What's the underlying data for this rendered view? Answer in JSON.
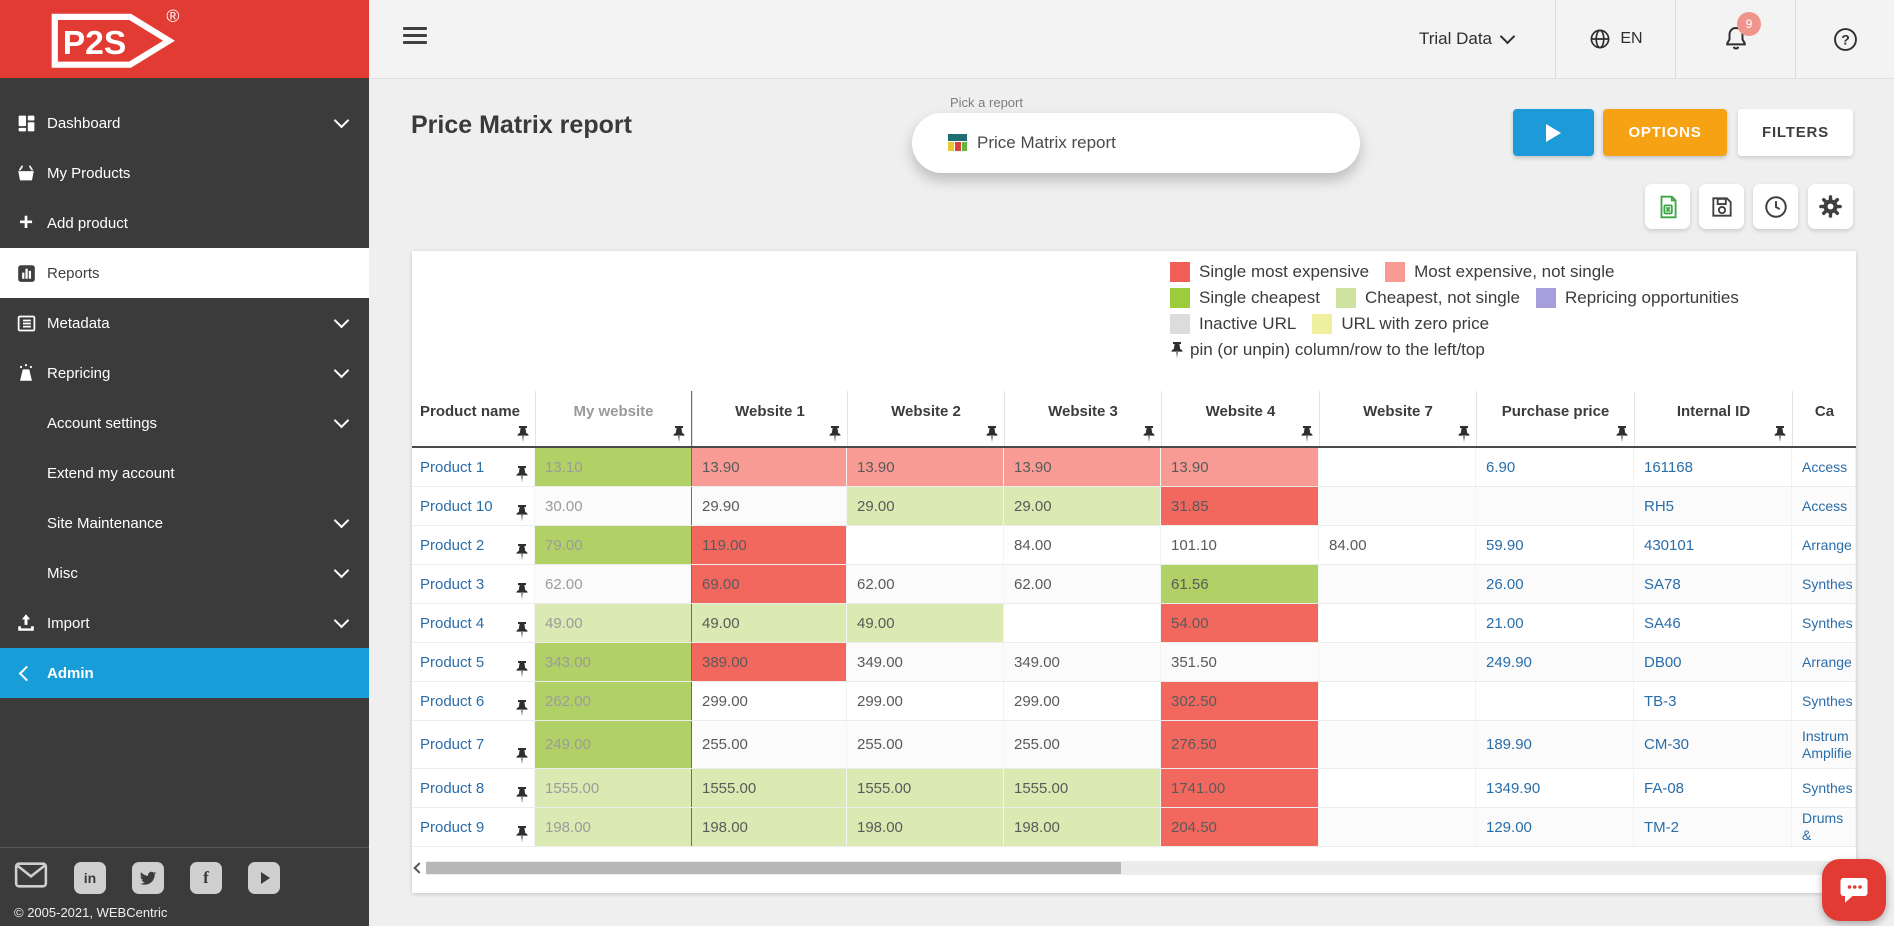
{
  "sidebar": {
    "logo_text": "P2S",
    "logo_reg": "®",
    "items": [
      {
        "label": "Dashboard",
        "icon": "dashboard",
        "chevron": true
      },
      {
        "label": "My Products",
        "icon": "basket"
      },
      {
        "label": "Add product",
        "icon": "plus"
      },
      {
        "label": "Reports",
        "icon": "reports",
        "active": true
      },
      {
        "label": "Metadata",
        "icon": "metadata",
        "chevron": true
      },
      {
        "label": "Repricing",
        "icon": "repricing",
        "chevron": true
      },
      {
        "label": "Account settings",
        "chevron": true
      },
      {
        "label": "Extend my account"
      },
      {
        "label": "Site Maintenance",
        "chevron": true
      },
      {
        "label": "Misc",
        "chevron": true
      },
      {
        "label": "Import",
        "icon": "import",
        "chevron": true
      },
      {
        "label": "Admin",
        "admin": true
      }
    ],
    "social_icons": [
      "email",
      "linkedin",
      "twitter",
      "facebook",
      "youtube"
    ],
    "copyright": "© 2005-2021, WEBCentric"
  },
  "topbar": {
    "account_label": "Trial Data",
    "language": "EN",
    "notifications_count": "9"
  },
  "page": {
    "title": "Price Matrix report"
  },
  "report_picker": {
    "label": "Pick a report",
    "value": "Price Matrix report"
  },
  "toolbar": {
    "options_label": "OPTIONS",
    "filters_label": "FILTERS",
    "icon_buttons": [
      "excel-export",
      "save",
      "history",
      "settings"
    ]
  },
  "legend": {
    "rows": [
      [
        {
          "swatch": "red",
          "label": "Single most expensive"
        },
        {
          "swatch": "pink",
          "label": "Most expensive, not single"
        }
      ],
      [
        {
          "swatch": "green",
          "label": "Single cheapest"
        },
        {
          "swatch": "lightgreen",
          "label": "Cheapest, not single"
        },
        {
          "swatch": "purple",
          "label": "Repricing opportunities"
        }
      ],
      [
        {
          "swatch": "gray",
          "label": "Inactive URL"
        },
        {
          "swatch": "yellow",
          "label": "URL with zero price"
        }
      ],
      [
        {
          "swatch": "pin",
          "label": "pin (or unpin) column/row to the left/top"
        }
      ]
    ]
  },
  "table": {
    "columns": [
      {
        "label": "Product name"
      },
      {
        "label": "My website",
        "muted": true
      },
      {
        "label": "Website 1"
      },
      {
        "label": "Website 2"
      },
      {
        "label": "Website 3"
      },
      {
        "label": "Website 4"
      },
      {
        "label": "Website 7"
      },
      {
        "label": "Purchase price"
      },
      {
        "label": "Internal ID"
      },
      {
        "label": "Ca",
        "clipped": true
      }
    ],
    "rows": [
      {
        "name": "Product 1",
        "cells": [
          [
            "13.10",
            "g"
          ],
          [
            "13.90",
            "p"
          ],
          [
            "13.90",
            "p"
          ],
          [
            "13.90",
            "p"
          ],
          [
            "13.90",
            "p"
          ],
          [
            "",
            ""
          ],
          [
            "6.90",
            ""
          ],
          [
            "161168",
            ""
          ],
          [
            "Access",
            ""
          ]
        ]
      },
      {
        "name": "Product 10",
        "cells": [
          [
            "30.00",
            ""
          ],
          [
            "29.90",
            ""
          ],
          [
            "29.00",
            "lg"
          ],
          [
            "29.00",
            "lg"
          ],
          [
            "31.85",
            "r"
          ],
          [
            "",
            ""
          ],
          [
            "",
            ""
          ],
          [
            "RH5",
            ""
          ],
          [
            "Access",
            ""
          ]
        ]
      },
      {
        "name": "Product 2",
        "cells": [
          [
            "79.00",
            "g"
          ],
          [
            "119.00",
            "r"
          ],
          [
            "",
            ""
          ],
          [
            "84.00",
            ""
          ],
          [
            "101.10",
            ""
          ],
          [
            "84.00",
            ""
          ],
          [
            "59.90",
            ""
          ],
          [
            "430101",
            ""
          ],
          [
            "Arrange",
            ""
          ]
        ]
      },
      {
        "name": "Product 3",
        "cells": [
          [
            "62.00",
            ""
          ],
          [
            "69.00",
            "r"
          ],
          [
            "62.00",
            ""
          ],
          [
            "62.00",
            ""
          ],
          [
            "61.56",
            "g"
          ],
          [
            "",
            ""
          ],
          [
            "26.00",
            ""
          ],
          [
            "SA78",
            ""
          ],
          [
            "Synthes",
            ""
          ]
        ]
      },
      {
        "name": "Product 4",
        "cells": [
          [
            "49.00",
            "lg"
          ],
          [
            "49.00",
            "lg"
          ],
          [
            "49.00",
            "lg"
          ],
          [
            "",
            ""
          ],
          [
            "54.00",
            "r"
          ],
          [
            "",
            ""
          ],
          [
            "21.00",
            ""
          ],
          [
            "SA46",
            ""
          ],
          [
            "Synthes",
            ""
          ]
        ]
      },
      {
        "name": "Product 5",
        "cells": [
          [
            "343.00",
            "g"
          ],
          [
            "389.00",
            "r"
          ],
          [
            "349.00",
            ""
          ],
          [
            "349.00",
            ""
          ],
          [
            "351.50",
            ""
          ],
          [
            "",
            ""
          ],
          [
            "249.90",
            ""
          ],
          [
            "DB00",
            ""
          ],
          [
            "Arrange",
            ""
          ]
        ]
      },
      {
        "name": "Product 6",
        "cells": [
          [
            "262.00",
            "g"
          ],
          [
            "299.00",
            ""
          ],
          [
            "299.00",
            ""
          ],
          [
            "299.00",
            ""
          ],
          [
            "302.50",
            "r"
          ],
          [
            "",
            ""
          ],
          [
            "",
            ""
          ],
          [
            "TB-3",
            ""
          ],
          [
            "Synthes",
            ""
          ]
        ]
      },
      {
        "name": "Product 7",
        "tall": true,
        "cells": [
          [
            "249.00",
            "g"
          ],
          [
            "255.00",
            ""
          ],
          [
            "255.00",
            ""
          ],
          [
            "255.00",
            ""
          ],
          [
            "276.50",
            "r"
          ],
          [
            "",
            ""
          ],
          [
            "189.90",
            ""
          ],
          [
            "CM-30",
            ""
          ],
          [
            "Instrum Amplifie",
            ""
          ]
        ]
      },
      {
        "name": "Product 8",
        "cells": [
          [
            "1555.00",
            "lg"
          ],
          [
            "1555.00",
            "lg"
          ],
          [
            "1555.00",
            "lg"
          ],
          [
            "1555.00",
            "lg"
          ],
          [
            "1741.00",
            "r"
          ],
          [
            "",
            ""
          ],
          [
            "1349.90",
            ""
          ],
          [
            "FA-08",
            ""
          ],
          [
            "Synthes",
            ""
          ]
        ]
      },
      {
        "name": "Product 9",
        "cells": [
          [
            "198.00",
            "lg"
          ],
          [
            "198.00",
            "lg"
          ],
          [
            "198.00",
            "lg"
          ],
          [
            "198.00",
            "lg"
          ],
          [
            "204.50",
            "r"
          ],
          [
            "",
            ""
          ],
          [
            "129.00",
            ""
          ],
          [
            "TM-2",
            ""
          ],
          [
            "Drums &",
            ""
          ]
        ]
      }
    ]
  },
  "colors": {
    "brand_red": "#e23b33",
    "admin_blue": "#189dd9",
    "play_blue": "#1d9bd9",
    "options_orange": "#f7a115",
    "excel_green": "#3da645",
    "link_blue": "#2a6da9",
    "badge_pink": "#f0958d",
    "red": "#ef5f58",
    "pink": "#f79b93",
    "green": "#9ccb3b",
    "lightgreen": "#cfe3a0",
    "purple": "#a79fdc",
    "gray": "#dcdcdc",
    "yellow": "#eef0a0"
  }
}
